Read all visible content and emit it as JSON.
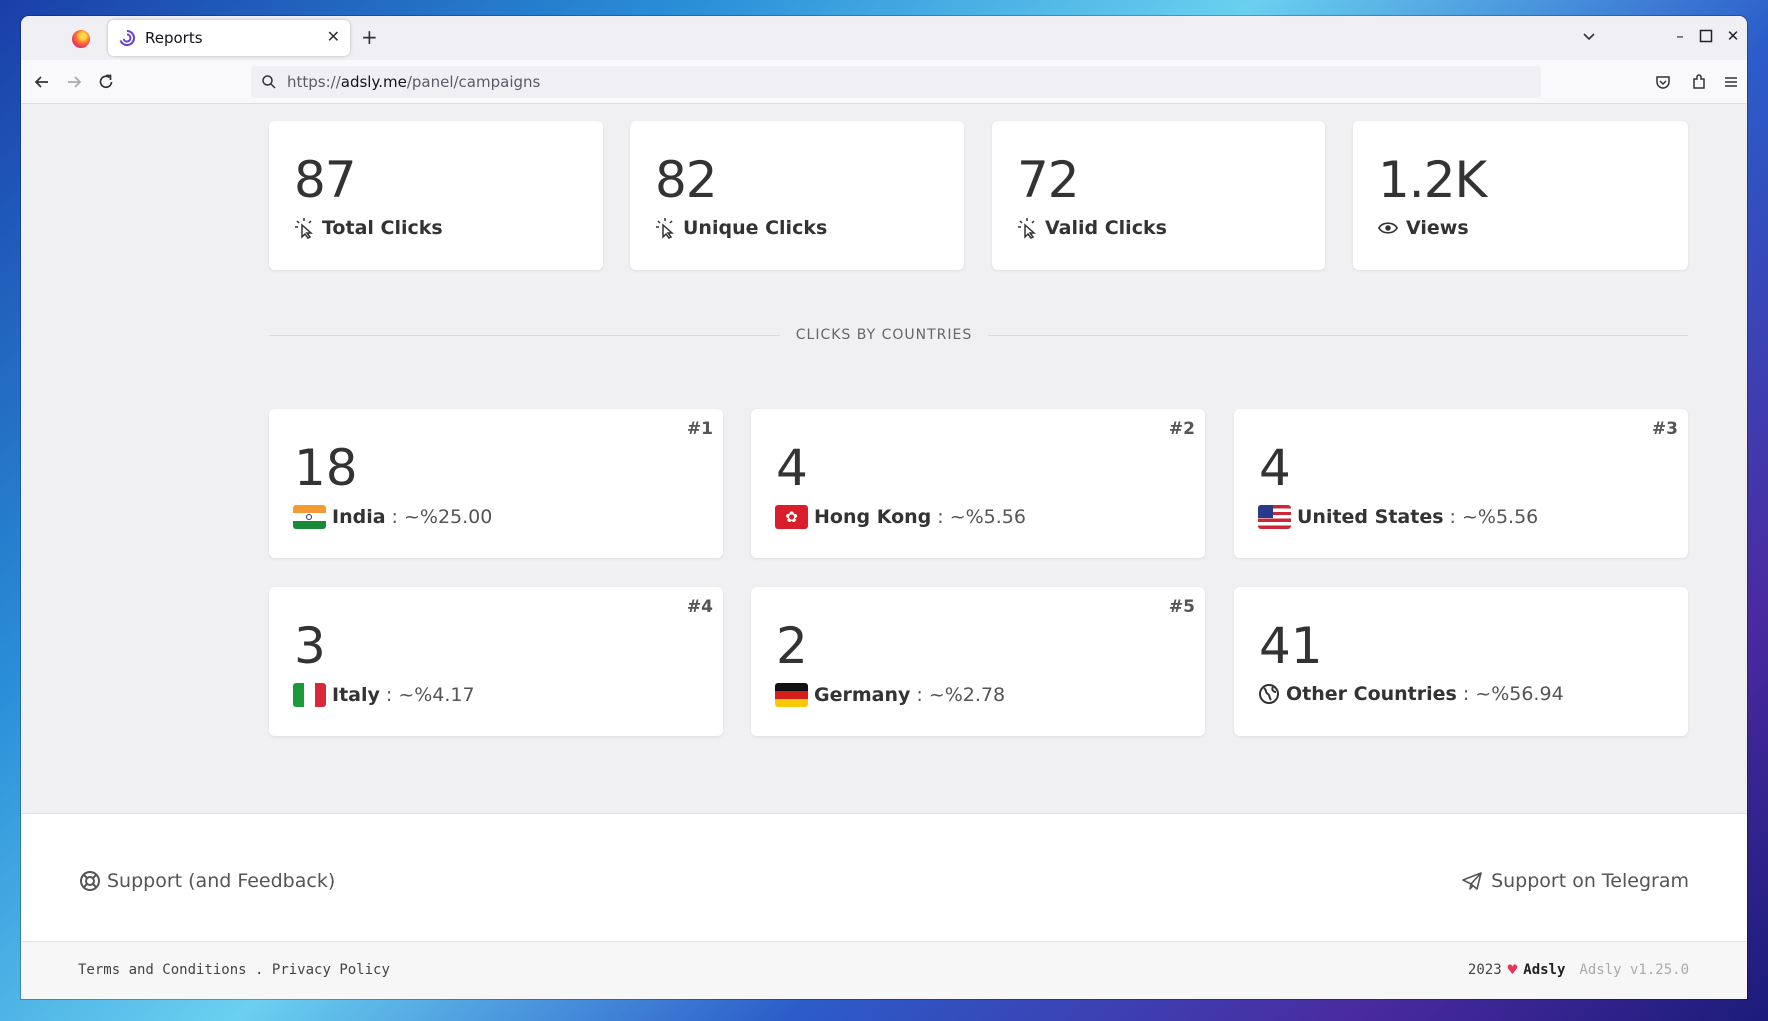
{
  "browser": {
    "tab_title": "Reports",
    "url_prefix": "https://",
    "url_host": "adsly.me",
    "url_path": "/panel/campaigns"
  },
  "stats": [
    {
      "value": "87",
      "label": "Total Clicks",
      "icon": "cursor-click-icon"
    },
    {
      "value": "82",
      "label": "Unique Clicks",
      "icon": "cursor-click-icon"
    },
    {
      "value": "72",
      "label": "Valid Clicks",
      "icon": "cursor-click-icon"
    },
    {
      "value": "1.2K",
      "label": "Views",
      "icon": "eye-icon"
    }
  ],
  "section_title": "CLICKS BY COUNTRIES",
  "countries": [
    {
      "rank": "#1",
      "value": "18",
      "name": "India",
      "pct": ": ~%25.00",
      "flag": "india-flag-icon"
    },
    {
      "rank": "#2",
      "value": "4",
      "name": "Hong Kong",
      "pct": ": ~%5.56",
      "flag": "hong-kong-flag-icon"
    },
    {
      "rank": "#3",
      "value": "4",
      "name": "United States",
      "pct": ": ~%5.56",
      "flag": "united-states-flag-icon"
    },
    {
      "rank": "#4",
      "value": "3",
      "name": "Italy",
      "pct": ": ~%4.17",
      "flag": "italy-flag-icon"
    },
    {
      "rank": "#5",
      "value": "2",
      "name": "Germany",
      "pct": ": ~%2.78",
      "flag": "germany-flag-icon"
    },
    {
      "rank": "",
      "value": "41",
      "name": "Other Countries",
      "pct": ": ~%56.94",
      "flag": "globe-icon"
    }
  ],
  "footer": {
    "support": "Support (and Feedback)",
    "telegram": "Support on Telegram",
    "terms": "Terms and Conditions",
    "separator": ".",
    "privacy": "Privacy Policy",
    "year": "2023",
    "brand": "Adsly",
    "version": "Adsly v1.25.0"
  },
  "colors": {
    "heart": "#e8345a"
  }
}
